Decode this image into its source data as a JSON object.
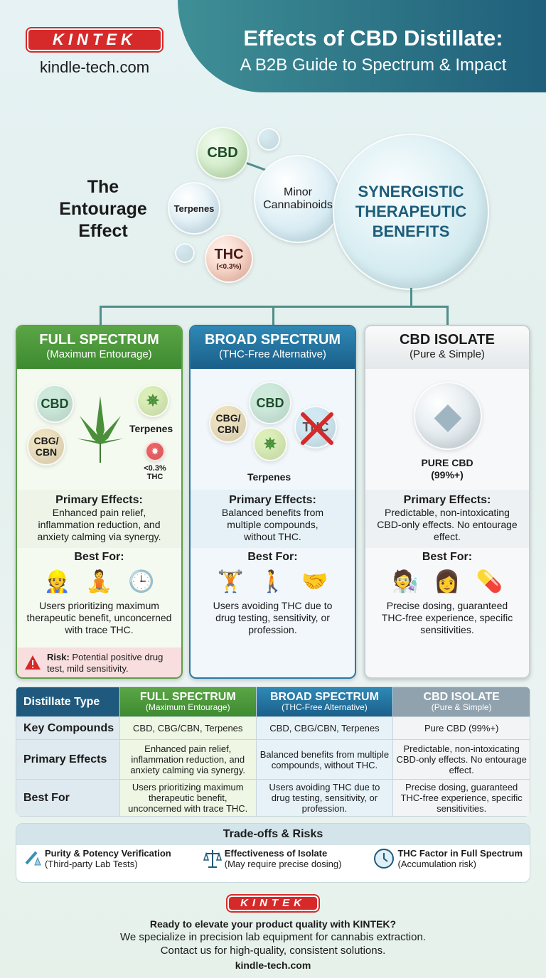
{
  "header": {
    "logo": "KINTEK",
    "site": "kindle-tech.com",
    "title_line1": "Effects of CBD Distillate:",
    "title_line2": "A B2B Guide to Spectrum & Impact"
  },
  "entourage": {
    "heading": [
      "The",
      "Entourage",
      "Effect"
    ],
    "bubbles": {
      "cbd": "CBD",
      "terpenes": "Terpenes",
      "thc": "THC",
      "thc_note": "(<0.3%)",
      "minor": "Minor Cannabinoids",
      "synergy": "SYNERGISTIC THERAPEUTIC BENEFITS"
    }
  },
  "cards": [
    {
      "title": "FULL SPECTRUM",
      "subtitle": "(Maximum Entourage)",
      "color": "#4e9a3a",
      "labels": {
        "cbd": "CBD",
        "cbg": "CBG/ CBN",
        "terpenes": "Terpenes",
        "thc": "<0.3% THC"
      },
      "effects_h": "Primary Effects:",
      "effects": "Enhanced pain relief, inflammation reduction, and anxiety calming via synergy.",
      "best_h": "Best For:",
      "icons": [
        "worker-icon",
        "meditation-icon",
        "clock-icon"
      ],
      "best": "Users prioritizing maximum therapeutic benefit, unconcerned with trace THC.",
      "risk_label": "Risk:",
      "risk": "Potential positive drug test, mild sensitivity."
    },
    {
      "title": "BROAD SPECTRUM",
      "subtitle": "(THC-Free Alternative)",
      "color": "#1e6e9a",
      "labels": {
        "cbd": "CBD",
        "cbg": "CBG/ CBN",
        "terpenes": "Terpenes",
        "thc": "THC"
      },
      "effects_h": "Primary Effects:",
      "effects": "Balanced benefits from multiple compounds, without THC.",
      "best_h": "Best For:",
      "icons": [
        "weightlifter-icon",
        "traveler-icon",
        "handshake-icon"
      ],
      "best": "Users avoiding THC due to drug testing, sensitivity, or profession."
    },
    {
      "title": "CBD ISOLATE",
      "subtitle": "(Pure & Simple)",
      "color": "#e9eef0",
      "labels": {
        "pure": "PURE CBD (99%+)"
      },
      "effects_h": "Primary Effects:",
      "effects": "Predictable, non-intoxicating CBD-only effects. No entourage effect.",
      "best_h": "Best For:",
      "icons": [
        "scientist-icon",
        "sensitive-person-icon",
        "medicine-bottle-icon"
      ],
      "best": "Precise dosing, guaranteed THC-free experience, specific sensitivities."
    }
  ],
  "table": {
    "corner": "Distillate Type",
    "columns": [
      {
        "t": "FULL SPECTRUM",
        "s": "(Maximum Entourage)"
      },
      {
        "t": "BROAD SPECTRUM",
        "s": "(THC-Free Alternative)"
      },
      {
        "t": "CBD ISOLATE",
        "s": "(Pure & Simple)"
      }
    ],
    "rows": [
      {
        "h": "Key Compounds",
        "c": [
          "CBD, CBG/CBN, Terpenes",
          "CBD, CBG/CBN, Terpenes",
          "Pure CBD (99%+)"
        ]
      },
      {
        "h": "Primary Effects",
        "c": [
          "Enhanced pain relief, inflammation reduction, and anxiety calming via synergy.",
          "Balanced benefits from multiple compounds, without THC.",
          "Predictable, non-intoxicating CBD-only effects. No entourage effect."
        ]
      },
      {
        "h": "Best For",
        "c": [
          "Users prioritizing maximum therapeutic benefit, unconcerned with trace THC.",
          "Users avoiding THC due to drug testing, sensitivity, or profession.",
          "Precise dosing, guaranteed THC-free experience, specific sensitivities."
        ]
      }
    ]
  },
  "tradeoffs": {
    "title": "Trade-offs & Risks",
    "items": [
      {
        "t": "Purity & Potency Verification",
        "s": "(Third-party Lab Tests)"
      },
      {
        "t": "Effectiveness of Isolate",
        "s": "(May require precise dosing)"
      },
      {
        "t": "THC Factor in Full Spectrum",
        "s": "(Accumulation risk)"
      }
    ]
  },
  "footer": {
    "logo": "KINTEK",
    "line1": "Ready to elevate your product quality with KINTEK?",
    "line2": "We specialize in precision lab equipment for cannabis extraction.",
    "line3": "Contact us for high-quality, consistent solutions.",
    "site": "kindle-tech.com"
  }
}
